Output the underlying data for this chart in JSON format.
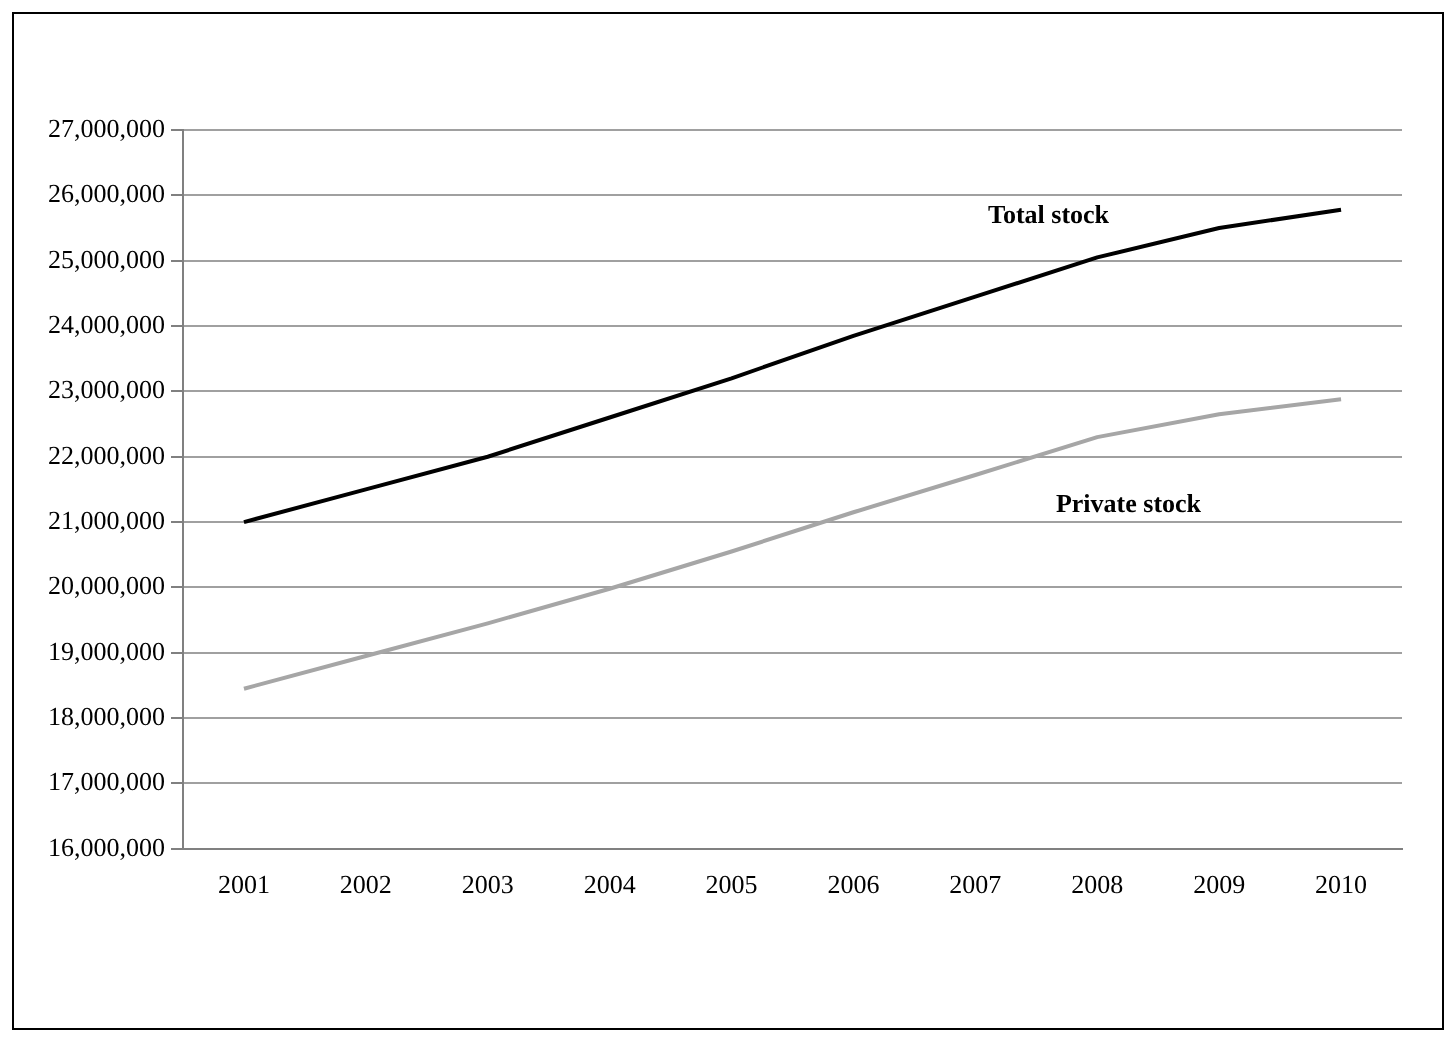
{
  "chart_data": {
    "type": "line",
    "categories": [
      "2001",
      "2002",
      "2003",
      "2004",
      "2005",
      "2006",
      "2007",
      "2008",
      "2009",
      "2010"
    ],
    "series": [
      {
        "name": "Total stock",
        "color": "#000000",
        "values": [
          21000000,
          21500000,
          22000000,
          22600000,
          23200000,
          23850000,
          24450000,
          25050000,
          25500000,
          25780000
        ]
      },
      {
        "name": "Private stock",
        "color": "#a6a6a6",
        "values": [
          18450000,
          18950000,
          19450000,
          19980000,
          20550000,
          21150000,
          21720000,
          22300000,
          22650000,
          22880000
        ]
      }
    ],
    "ylim": [
      16000000,
      27000000
    ],
    "yticks": [
      {
        "value": 16000000,
        "label": "16,000,000"
      },
      {
        "value": 17000000,
        "label": "17,000,000"
      },
      {
        "value": 18000000,
        "label": "18,000,000"
      },
      {
        "value": 19000000,
        "label": "19,000,000"
      },
      {
        "value": 20000000,
        "label": "20,000,000"
      },
      {
        "value": 21000000,
        "label": "21,000,000"
      },
      {
        "value": 22000000,
        "label": "22,000,000"
      },
      {
        "value": 23000000,
        "label": "23,000,000"
      },
      {
        "value": 24000000,
        "label": "24,000,000"
      },
      {
        "value": 25000000,
        "label": "25,000,000"
      },
      {
        "value": 26000000,
        "label": "26,000,000"
      },
      {
        "value": 27000000,
        "label": "27,000,000"
      }
    ],
    "grid": "y",
    "legend": false,
    "marker": "none",
    "line_style": "solid"
  }
}
